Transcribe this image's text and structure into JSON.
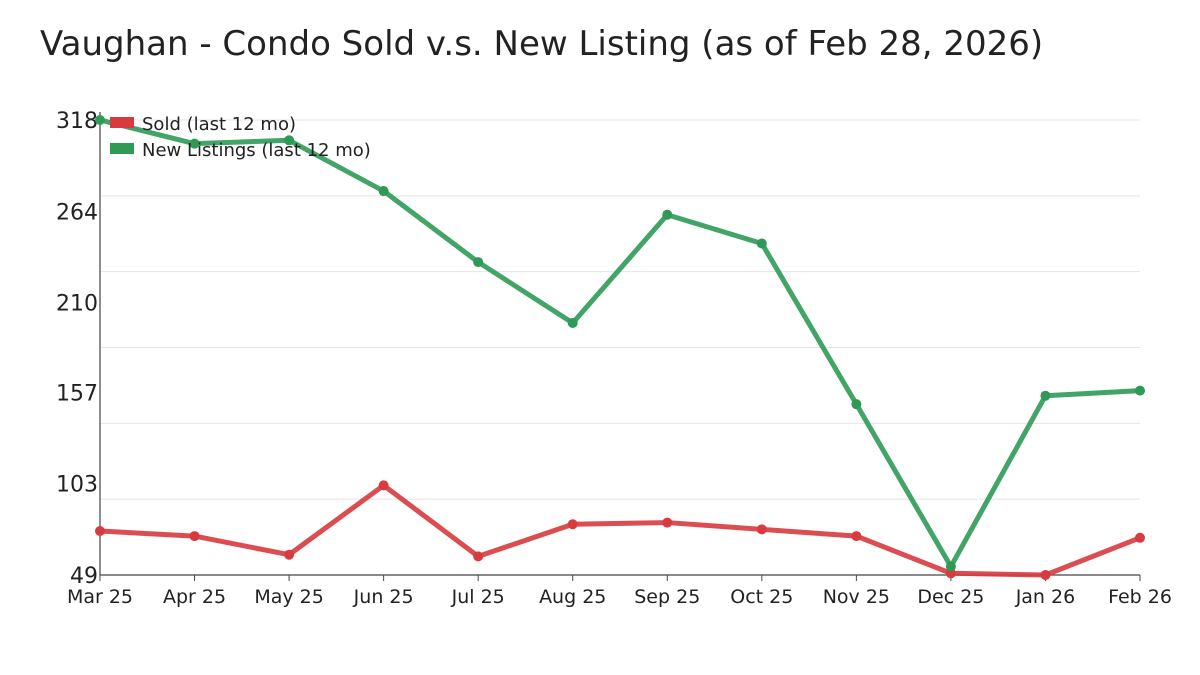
{
  "chart_data": {
    "type": "line",
    "title": "Vaughan - Condo Sold v.s. New Listing (as of Feb 28, 2026)",
    "xlabel": "",
    "ylabel": "",
    "categories": [
      "Mar 25",
      "Apr 25",
      "May 25",
      "Jun 25",
      "Jul 25",
      "Aug 25",
      "Sep 25",
      "Oct 25",
      "Nov 25",
      "Dec 25",
      "Jan 26",
      "Feb 26"
    ],
    "y_ticks": [
      49,
      103,
      157,
      210,
      264,
      318
    ],
    "ylim": [
      49,
      318
    ],
    "grid": true,
    "legend_position": "top-left",
    "series": [
      {
        "name": "Sold (last 12 mo)",
        "color": "#d83a3e",
        "values": [
          75,
          72,
          61,
          102,
          60,
          79,
          80,
          76,
          72,
          50,
          49,
          71
        ]
      },
      {
        "name": "New Listings (last 12 mo)",
        "color": "#2e9a55",
        "values": [
          318,
          304,
          306,
          276,
          234,
          198,
          262,
          245,
          150,
          54,
          155,
          158
        ]
      }
    ]
  }
}
